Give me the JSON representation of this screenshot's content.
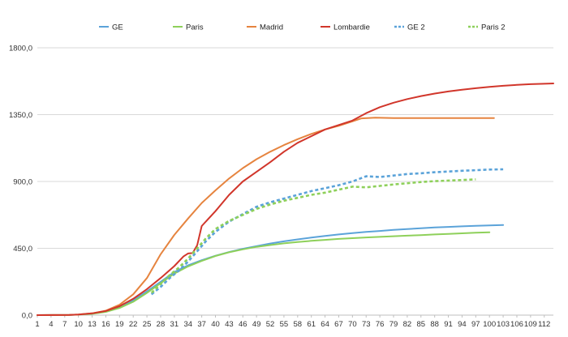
{
  "chart_data": {
    "type": "line",
    "title": "",
    "xlabel": "",
    "ylabel": "",
    "xlim": [
      1,
      113
    ],
    "ylim": [
      0,
      1800
    ],
    "grid": "horizontal",
    "legend_position": "top",
    "x_ticks": [
      1,
      4,
      7,
      10,
      13,
      16,
      19,
      22,
      25,
      28,
      31,
      34,
      37,
      40,
      43,
      46,
      49,
      52,
      55,
      58,
      61,
      64,
      67,
      70,
      73,
      76,
      79,
      82,
      85,
      88,
      91,
      94,
      97,
      100,
      103,
      106,
      109,
      112
    ],
    "y_ticks": [
      {
        "value": 0,
        "label": "0,0"
      },
      {
        "value": 450,
        "label": "450,0"
      },
      {
        "value": 900,
        "label": "900,0"
      },
      {
        "value": 1350,
        "label": "1350,0"
      },
      {
        "value": 1800,
        "label": "1800,0"
      }
    ],
    "series": [
      {
        "name": "GE",
        "color": "#5ba3d9",
        "dash": "solid",
        "points": [
          [
            1,
            0
          ],
          [
            8,
            1
          ],
          [
            10,
            3
          ],
          [
            13,
            10
          ],
          [
            16,
            25
          ],
          [
            19,
            55
          ],
          [
            22,
            100
          ],
          [
            25,
            160
          ],
          [
            28,
            225
          ],
          [
            31,
            290
          ],
          [
            34,
            335
          ],
          [
            37,
            370
          ],
          [
            40,
            400
          ],
          [
            43,
            425
          ],
          [
            46,
            447
          ],
          [
            49,
            465
          ],
          [
            52,
            482
          ],
          [
            55,
            497
          ],
          [
            58,
            510
          ],
          [
            61,
            522
          ],
          [
            64,
            533
          ],
          [
            67,
            543
          ],
          [
            70,
            552
          ],
          [
            73,
            560
          ],
          [
            76,
            567
          ],
          [
            79,
            574
          ],
          [
            82,
            580
          ],
          [
            85,
            585
          ],
          [
            88,
            590
          ],
          [
            91,
            594
          ],
          [
            94,
            598
          ],
          [
            97,
            601
          ],
          [
            100,
            604
          ],
          [
            103,
            607
          ]
        ]
      },
      {
        "name": "Paris",
        "color": "#8ed05a",
        "dash": "solid",
        "points": [
          [
            1,
            0
          ],
          [
            8,
            1
          ],
          [
            10,
            3
          ],
          [
            13,
            9
          ],
          [
            16,
            22
          ],
          [
            19,
            48
          ],
          [
            22,
            90
          ],
          [
            25,
            150
          ],
          [
            28,
            215
          ],
          [
            31,
            280
          ],
          [
            34,
            328
          ],
          [
            37,
            365
          ],
          [
            40,
            398
          ],
          [
            43,
            423
          ],
          [
            46,
            443
          ],
          [
            49,
            460
          ],
          [
            52,
            472
          ],
          [
            55,
            483
          ],
          [
            58,
            492
          ],
          [
            61,
            500
          ],
          [
            64,
            507
          ],
          [
            67,
            513
          ],
          [
            70,
            518
          ],
          [
            73,
            523
          ],
          [
            76,
            527
          ],
          [
            79,
            531
          ],
          [
            82,
            535
          ],
          [
            85,
            539
          ],
          [
            88,
            543
          ],
          [
            91,
            547
          ],
          [
            94,
            551
          ],
          [
            97,
            555
          ],
          [
            100,
            558
          ]
        ]
      },
      {
        "name": "Madrid",
        "color": "#e6843f",
        "dash": "solid",
        "points": [
          [
            1,
            0
          ],
          [
            8,
            1
          ],
          [
            10,
            4
          ],
          [
            13,
            12
          ],
          [
            16,
            30
          ],
          [
            19,
            70
          ],
          [
            22,
            140
          ],
          [
            25,
            250
          ],
          [
            28,
            410
          ],
          [
            31,
            540
          ],
          [
            34,
            650
          ],
          [
            37,
            755
          ],
          [
            40,
            840
          ],
          [
            43,
            920
          ],
          [
            46,
            990
          ],
          [
            49,
            1050
          ],
          [
            52,
            1100
          ],
          [
            55,
            1145
          ],
          [
            58,
            1185
          ],
          [
            61,
            1220
          ],
          [
            64,
            1250
          ],
          [
            67,
            1275
          ],
          [
            70,
            1305
          ],
          [
            72,
            1325
          ],
          [
            75,
            1330
          ],
          [
            79,
            1327
          ],
          [
            85,
            1327
          ],
          [
            91,
            1327
          ],
          [
            97,
            1327
          ],
          [
            101,
            1327
          ]
        ]
      },
      {
        "name": "Lombardie",
        "color": "#d1362b",
        "dash": "solid",
        "points": [
          [
            1,
            0
          ],
          [
            8,
            1
          ],
          [
            10,
            4
          ],
          [
            13,
            12
          ],
          [
            16,
            28
          ],
          [
            19,
            60
          ],
          [
            22,
            110
          ],
          [
            25,
            175
          ],
          [
            28,
            250
          ],
          [
            31,
            330
          ],
          [
            33,
            395
          ],
          [
            34,
            415
          ],
          [
            35,
            418
          ],
          [
            36,
            470
          ],
          [
            37,
            600
          ],
          [
            40,
            700
          ],
          [
            43,
            810
          ],
          [
            46,
            900
          ],
          [
            49,
            965
          ],
          [
            52,
            1030
          ],
          [
            55,
            1100
          ],
          [
            58,
            1160
          ],
          [
            61,
            1205
          ],
          [
            64,
            1250
          ],
          [
            67,
            1280
          ],
          [
            70,
            1310
          ],
          [
            73,
            1360
          ],
          [
            76,
            1400
          ],
          [
            79,
            1430
          ],
          [
            82,
            1455
          ],
          [
            85,
            1475
          ],
          [
            88,
            1492
          ],
          [
            91,
            1506
          ],
          [
            94,
            1518
          ],
          [
            97,
            1528
          ],
          [
            100,
            1537
          ],
          [
            103,
            1544
          ],
          [
            106,
            1550
          ],
          [
            109,
            1555
          ],
          [
            112,
            1558
          ],
          [
            114,
            1560
          ]
        ]
      },
      {
        "name": "GE 2",
        "color": "#5ba3d9",
        "dash": "dashed",
        "points": [
          [
            26,
            140
          ],
          [
            28,
            190
          ],
          [
            30,
            250
          ],
          [
            32,
            300
          ],
          [
            34,
            360
          ],
          [
            36,
            430
          ],
          [
            38,
            500
          ],
          [
            40,
            560
          ],
          [
            43,
            630
          ],
          [
            46,
            680
          ],
          [
            49,
            730
          ],
          [
            52,
            760
          ],
          [
            55,
            785
          ],
          [
            58,
            810
          ],
          [
            61,
            835
          ],
          [
            64,
            855
          ],
          [
            67,
            875
          ],
          [
            70,
            900
          ],
          [
            73,
            935
          ],
          [
            76,
            930
          ],
          [
            79,
            940
          ],
          [
            82,
            950
          ],
          [
            85,
            955
          ],
          [
            88,
            962
          ],
          [
            91,
            967
          ],
          [
            94,
            972
          ],
          [
            97,
            976
          ],
          [
            100,
            980
          ],
          [
            103,
            982
          ]
        ]
      },
      {
        "name": "Paris 2",
        "color": "#8ed05a",
        "dash": "dashed",
        "points": [
          [
            26,
            150
          ],
          [
            28,
            210
          ],
          [
            30,
            270
          ],
          [
            32,
            320
          ],
          [
            34,
            380
          ],
          [
            36,
            450
          ],
          [
            38,
            520
          ],
          [
            40,
            580
          ],
          [
            43,
            635
          ],
          [
            46,
            675
          ],
          [
            49,
            715
          ],
          [
            52,
            745
          ],
          [
            55,
            770
          ],
          [
            58,
            790
          ],
          [
            61,
            810
          ],
          [
            64,
            825
          ],
          [
            67,
            845
          ],
          [
            70,
            865
          ],
          [
            73,
            860
          ],
          [
            76,
            870
          ],
          [
            79,
            880
          ],
          [
            82,
            888
          ],
          [
            85,
            896
          ],
          [
            88,
            902
          ],
          [
            91,
            906
          ],
          [
            94,
            910
          ],
          [
            97,
            914
          ]
        ]
      }
    ]
  }
}
